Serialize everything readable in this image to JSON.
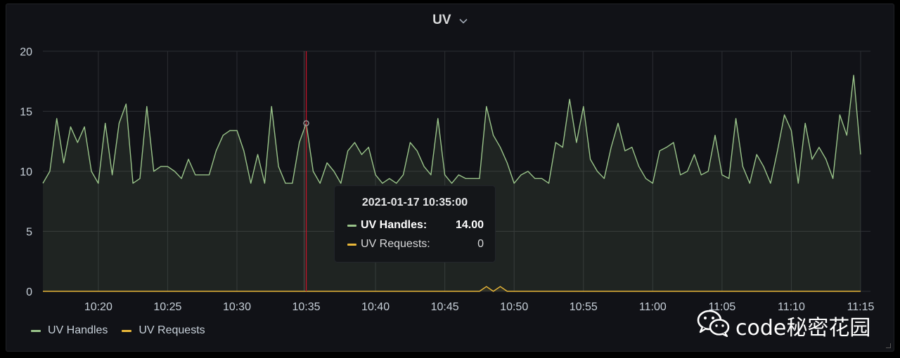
{
  "panel": {
    "title": "UV"
  },
  "chart_data": {
    "type": "area",
    "title": "UV",
    "x_range": [
      "2021-01-17 10:16:00",
      "2021-01-17 11:15:00"
    ],
    "ylim": [
      0,
      20
    ],
    "y_ticks": [
      "0",
      "5",
      "10",
      "15",
      "20"
    ],
    "x_ticks": [
      {
        "t": "2021-01-17 10:20:00",
        "label": "10:20"
      },
      {
        "t": "2021-01-17 10:25:00",
        "label": "10:25"
      },
      {
        "t": "2021-01-17 10:30:00",
        "label": "10:30"
      },
      {
        "t": "2021-01-17 10:35:00",
        "label": "10:35"
      },
      {
        "t": "2021-01-17 10:40:00",
        "label": "10:40"
      },
      {
        "t": "2021-01-17 10:45:00",
        "label": "10:45"
      },
      {
        "t": "2021-01-17 10:50:00",
        "label": "10:50"
      },
      {
        "t": "2021-01-17 10:55:00",
        "label": "10:55"
      },
      {
        "t": "2021-01-17 11:00:00",
        "label": "11:00"
      },
      {
        "t": "2021-01-17 11:05:00",
        "label": "11:05"
      },
      {
        "t": "2021-01-17 11:10:00",
        "label": "11:10"
      },
      {
        "t": "2021-01-17 11:15:00",
        "label": "11:15"
      }
    ],
    "grid": true,
    "legend_position": "bottom-left",
    "series": [
      {
        "name": "UV Handles",
        "color": "#9ac48a",
        "points": [
          [
            "2021-01-17 10:16:00",
            9
          ],
          [
            "2021-01-17 10:16:30",
            10
          ],
          [
            "2021-01-17 10:17:00",
            14.4
          ],
          [
            "2021-01-17 10:17:30",
            10.7
          ],
          [
            "2021-01-17 10:18:00",
            13.7
          ],
          [
            "2021-01-17 10:18:30",
            12.4
          ],
          [
            "2021-01-17 10:19:00",
            13.7
          ],
          [
            "2021-01-17 10:19:30",
            10
          ],
          [
            "2021-01-17 10:20:00",
            9
          ],
          [
            "2021-01-17 10:20:30",
            14
          ],
          [
            "2021-01-17 10:21:00",
            9.7
          ],
          [
            "2021-01-17 10:21:30",
            14
          ],
          [
            "2021-01-17 10:22:00",
            15.6
          ],
          [
            "2021-01-17 10:22:30",
            9
          ],
          [
            "2021-01-17 10:23:00",
            9.4
          ],
          [
            "2021-01-17 10:23:30",
            15.4
          ],
          [
            "2021-01-17 10:24:00",
            10
          ],
          [
            "2021-01-17 10:24:30",
            10.4
          ],
          [
            "2021-01-17 10:25:00",
            10.4
          ],
          [
            "2021-01-17 10:25:30",
            10
          ],
          [
            "2021-01-17 10:26:00",
            9.4
          ],
          [
            "2021-01-17 10:26:30",
            11
          ],
          [
            "2021-01-17 10:27:00",
            9.7
          ],
          [
            "2021-01-17 10:27:30",
            9.7
          ],
          [
            "2021-01-17 10:28:00",
            9.7
          ],
          [
            "2021-01-17 10:28:30",
            11.7
          ],
          [
            "2021-01-17 10:29:00",
            13
          ],
          [
            "2021-01-17 10:29:30",
            13.4
          ],
          [
            "2021-01-17 10:30:00",
            13.4
          ],
          [
            "2021-01-17 10:30:30",
            11.7
          ],
          [
            "2021-01-17 10:31:00",
            9
          ],
          [
            "2021-01-17 10:31:30",
            11.4
          ],
          [
            "2021-01-17 10:32:00",
            9
          ],
          [
            "2021-01-17 10:32:30",
            15.4
          ],
          [
            "2021-01-17 10:33:00",
            10.4
          ],
          [
            "2021-01-17 10:33:30",
            9
          ],
          [
            "2021-01-17 10:34:00",
            9
          ],
          [
            "2021-01-17 10:34:30",
            12.4
          ],
          [
            "2021-01-17 10:35:00",
            14
          ],
          [
            "2021-01-17 10:35:30",
            10
          ],
          [
            "2021-01-17 10:36:00",
            9
          ],
          [
            "2021-01-17 10:36:30",
            10.7
          ],
          [
            "2021-01-17 10:37:00",
            10
          ],
          [
            "2021-01-17 10:37:30",
            9
          ],
          [
            "2021-01-17 10:38:00",
            11.7
          ],
          [
            "2021-01-17 10:38:30",
            12.4
          ],
          [
            "2021-01-17 10:39:00",
            11.4
          ],
          [
            "2021-01-17 10:39:30",
            12
          ],
          [
            "2021-01-17 10:40:00",
            9.7
          ],
          [
            "2021-01-17 10:40:30",
            9
          ],
          [
            "2021-01-17 10:41:00",
            9.4
          ],
          [
            "2021-01-17 10:41:30",
            9
          ],
          [
            "2021-01-17 10:42:00",
            9.7
          ],
          [
            "2021-01-17 10:42:30",
            12.4
          ],
          [
            "2021-01-17 10:43:00",
            11.7
          ],
          [
            "2021-01-17 10:43:30",
            10.4
          ],
          [
            "2021-01-17 10:44:00",
            9.7
          ],
          [
            "2021-01-17 10:44:30",
            14.4
          ],
          [
            "2021-01-17 10:45:00",
            9.7
          ],
          [
            "2021-01-17 10:45:30",
            9
          ],
          [
            "2021-01-17 10:46:00",
            9.7
          ],
          [
            "2021-01-17 10:46:30",
            9.4
          ],
          [
            "2021-01-17 10:47:00",
            9.4
          ],
          [
            "2021-01-17 10:47:30",
            9.4
          ],
          [
            "2021-01-17 10:48:00",
            15.4
          ],
          [
            "2021-01-17 10:48:30",
            13
          ],
          [
            "2021-01-17 10:49:00",
            12
          ],
          [
            "2021-01-17 10:49:30",
            10.7
          ],
          [
            "2021-01-17 10:50:00",
            9
          ],
          [
            "2021-01-17 10:50:30",
            9.7
          ],
          [
            "2021-01-17 10:51:00",
            10
          ],
          [
            "2021-01-17 10:51:30",
            9.4
          ],
          [
            "2021-01-17 10:52:00",
            9.4
          ],
          [
            "2021-01-17 10:52:30",
            9
          ],
          [
            "2021-01-17 10:53:00",
            12.4
          ],
          [
            "2021-01-17 10:53:30",
            12
          ],
          [
            "2021-01-17 10:54:00",
            16
          ],
          [
            "2021-01-17 10:54:30",
            12.4
          ],
          [
            "2021-01-17 10:55:00",
            15.4
          ],
          [
            "2021-01-17 10:55:30",
            11
          ],
          [
            "2021-01-17 10:56:00",
            10
          ],
          [
            "2021-01-17 10:56:30",
            9.4
          ],
          [
            "2021-01-17 10:57:00",
            12
          ],
          [
            "2021-01-17 10:57:30",
            14
          ],
          [
            "2021-01-17 10:58:00",
            11.7
          ],
          [
            "2021-01-17 10:58:30",
            12
          ],
          [
            "2021-01-17 10:59:00",
            10.4
          ],
          [
            "2021-01-17 10:59:30",
            9.4
          ],
          [
            "2021-01-17 11:00:00",
            9
          ],
          [
            "2021-01-17 11:00:30",
            11.7
          ],
          [
            "2021-01-17 11:01:00",
            12
          ],
          [
            "2021-01-17 11:01:30",
            12.4
          ],
          [
            "2021-01-17 11:02:00",
            9.7
          ],
          [
            "2021-01-17 11:02:30",
            10
          ],
          [
            "2021-01-17 11:03:00",
            11.4
          ],
          [
            "2021-01-17 11:03:30",
            9.7
          ],
          [
            "2021-01-17 11:04:00",
            10
          ],
          [
            "2021-01-17 11:04:30",
            13
          ],
          [
            "2021-01-17 11:05:00",
            9.7
          ],
          [
            "2021-01-17 11:05:30",
            9.4
          ],
          [
            "2021-01-17 11:06:00",
            14.4
          ],
          [
            "2021-01-17 11:06:30",
            10.4
          ],
          [
            "2021-01-17 11:07:00",
            9
          ],
          [
            "2021-01-17 11:07:30",
            11.4
          ],
          [
            "2021-01-17 11:08:00",
            10.4
          ],
          [
            "2021-01-17 11:08:30",
            9
          ],
          [
            "2021-01-17 11:09:00",
            11.7
          ],
          [
            "2021-01-17 11:09:30",
            14.7
          ],
          [
            "2021-01-17 11:10:00",
            13.4
          ],
          [
            "2021-01-17 11:10:30",
            9
          ],
          [
            "2021-01-17 11:11:00",
            14
          ],
          [
            "2021-01-17 11:11:30",
            11
          ],
          [
            "2021-01-17 11:12:00",
            12
          ],
          [
            "2021-01-17 11:12:30",
            11
          ],
          [
            "2021-01-17 11:13:00",
            9.4
          ],
          [
            "2021-01-17 11:13:30",
            14.7
          ],
          [
            "2021-01-17 11:14:00",
            13
          ],
          [
            "2021-01-17 11:14:30",
            18
          ],
          [
            "2021-01-17 11:15:00",
            11.4
          ]
        ]
      },
      {
        "name": "UV Requests",
        "color": "#eab839",
        "points": [
          [
            "2021-01-17 10:16:00",
            0
          ],
          [
            "2021-01-17 10:47:30",
            0
          ],
          [
            "2021-01-17 10:48:00",
            0.4
          ],
          [
            "2021-01-17 10:48:30",
            0
          ],
          [
            "2021-01-17 10:49:00",
            0.4
          ],
          [
            "2021-01-17 10:49:30",
            0
          ],
          [
            "2021-01-17 11:15:00",
            0
          ]
        ]
      }
    ],
    "crosshair": {
      "t": "2021-01-17 10:35:00"
    },
    "tooltip": {
      "time": "2021-01-17 10:35:00",
      "rows": [
        {
          "name": "UV Handles:",
          "value": "14.00",
          "color": "#9ac48a",
          "highlight": true
        },
        {
          "name": "UV Requests:",
          "value": "0",
          "color": "#eab839",
          "highlight": false
        }
      ]
    }
  },
  "legend": [
    {
      "label": "UV Handles",
      "color": "#9ac48a"
    },
    {
      "label": "UV Requests",
      "color": "#eab839"
    }
  ],
  "watermark": {
    "text": "code秘密花园",
    "icon": "wechat-icon"
  }
}
